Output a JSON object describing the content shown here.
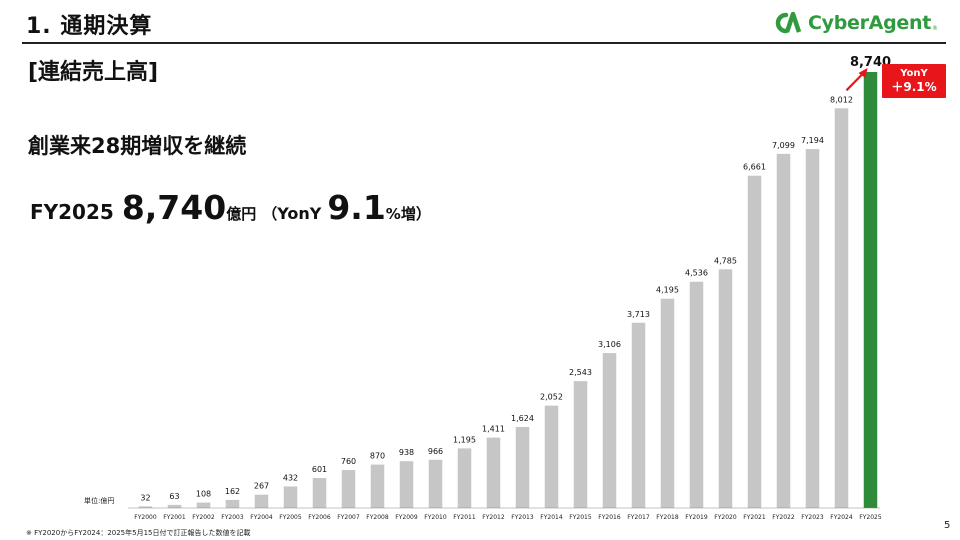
{
  "header": {
    "title": "1. 通期決算",
    "logo_text": "CyberAgent"
  },
  "section_label": "[連結売上高]",
  "headline": "創業来28期増収を継続",
  "kpi": {
    "fiscal_year": "FY2025",
    "value": "8,740",
    "unit": "億円",
    "paren_open": "（",
    "yony_label": "YonY",
    "rate": "9.1",
    "rate_suffix": "%増",
    "paren_close": "）"
  },
  "badge": {
    "line1": "YonY",
    "line2": "＋9.1%"
  },
  "unit_label": "単位:億円",
  "footnote": "※ FY2020からFY2024：2025年5月15日付で訂正報告した数値を記載",
  "page_number": "5",
  "colors": {
    "bar": "#c6c6c6",
    "highlight_bar": "#2e8b3a",
    "accent": "#e8151a",
    "logo": "#2f9a3e"
  },
  "chart_data": {
    "type": "bar",
    "categories": [
      "FY2000",
      "FY2001",
      "FY2002",
      "FY2003",
      "FY2004",
      "FY2005",
      "FY2006",
      "FY2007",
      "FY2008",
      "FY2009",
      "FY2010",
      "FY2011",
      "FY2012",
      "FY2013",
      "FY2014",
      "FY2015",
      "FY2016",
      "FY2017",
      "FY2018",
      "FY2019",
      "FY2020",
      "FY2021",
      "FY2022",
      "FY2023",
      "FY2024",
      "FY2025"
    ],
    "values": [
      32,
      63,
      108,
      162,
      267,
      432,
      601,
      760,
      870,
      938,
      966,
      1195,
      1411,
      1624,
      2052,
      2543,
      3106,
      3713,
      4195,
      4536,
      4785,
      6661,
      7099,
      7194,
      8012,
      8740
    ],
    "value_labels": [
      "32",
      "63",
      "108",
      "162",
      "267",
      "432",
      "601",
      "760",
      "870",
      "938",
      "966",
      "1,195",
      "1,411",
      "1,624",
      "2,052",
      "2,543",
      "3,106",
      "3,713",
      "4,195",
      "4,536",
      "4,785",
      "6,661",
      "7,099",
      "7,194",
      "8,012",
      "8,740"
    ],
    "highlight_category": "FY2025",
    "ylim": [
      0,
      8740
    ],
    "grid": false,
    "title": "",
    "xlabel": "",
    "ylabel": ""
  }
}
